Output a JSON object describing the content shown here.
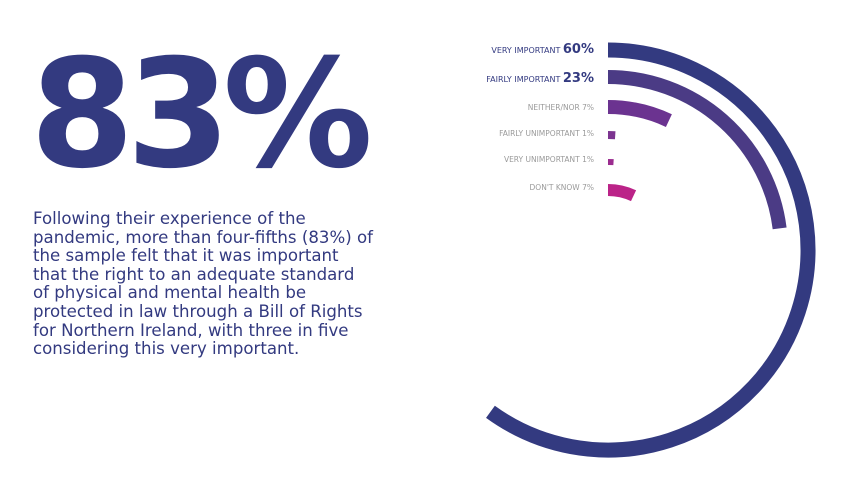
{
  "headline": {
    "stat": "83%"
  },
  "description": "Following their experience of the pandemic, more than four-fifths (83%) of the sample felt that it was important that the right to an adequate standard of physical and mental health be protected in law through a Bill of Rights for Northern Ireland, with three in five considering this very important.",
  "chart_data": {
    "type": "radial-bar",
    "categories": [
      "VERY IMPORTANT",
      "FAIRLY IMPORTANT",
      "NEITHER/NOR",
      "FAIRLY UNIMPORTANT",
      "VERY UNIMPORTANT",
      "DON'T KNOW"
    ],
    "values": [
      60,
      23,
      7,
      1,
      1,
      7
    ],
    "value_labels": [
      "60%",
      "23%",
      "7%",
      "1%",
      "1%",
      "7%"
    ],
    "colors": [
      "#333a80",
      "#4b3b85",
      "#6b3390",
      "#7c3490",
      "#9b2c8f",
      "#bb2388"
    ],
    "max": 100
  }
}
